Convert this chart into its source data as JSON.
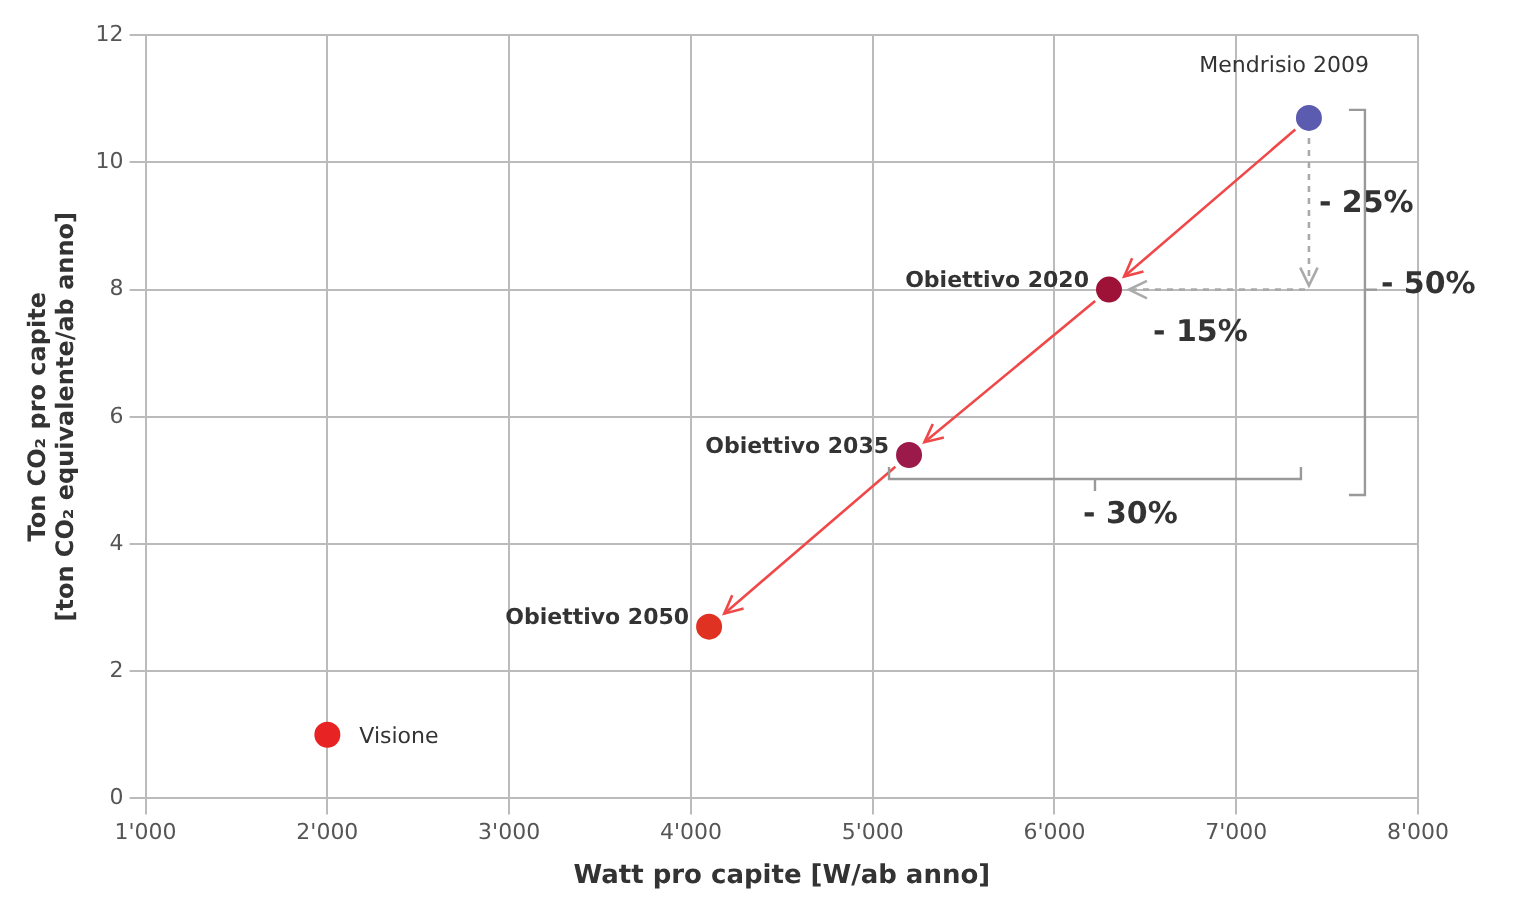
{
  "chart_data": {
    "type": "scatter",
    "xlabel": "Watt pro capite [W/ab anno]",
    "ylabel": "Ton CO₂ pro capite\n[ton CO₂ equivalente/ab anno]",
    "xlim": [
      1000,
      8000
    ],
    "xticks": [
      {
        "value": 1000,
        "label": "1'000"
      },
      {
        "value": 2000,
        "label": "2'000"
      },
      {
        "value": 3000,
        "label": "3'000"
      },
      {
        "value": 4000,
        "label": "4'000"
      },
      {
        "value": 5000,
        "label": "5'000"
      },
      {
        "value": 6000,
        "label": "6'000"
      },
      {
        "value": 7000,
        "label": "7'000"
      },
      {
        "value": 8000,
        "label": "8'000"
      }
    ],
    "ylim": [
      0,
      12
    ],
    "yticks": [
      0,
      2,
      4,
      6,
      8,
      10,
      12
    ],
    "grid": true,
    "marker": "circle",
    "series": [
      {
        "name": "Mendrisio 2009",
        "color": "#5b5bb0",
        "x": [
          7400
        ],
        "values": [
          10.7
        ]
      },
      {
        "name": "Obiettivo 2020",
        "color": "#9e1238",
        "x": [
          6300
        ],
        "values": [
          8.0
        ]
      },
      {
        "name": "Obiettivo 2035",
        "color": "#9c1a4a",
        "x": [
          5200
        ],
        "values": [
          5.4
        ]
      },
      {
        "name": "Obiettivo 2050",
        "color": "#e03222",
        "x": [
          4100
        ],
        "values": [
          2.7
        ]
      },
      {
        "name": "Visione",
        "color": "#e82323",
        "x": [
          2000
        ],
        "values": [
          1.0
        ]
      }
    ],
    "annotations": [
      "- 25%",
      "- 15%",
      "- 50%",
      "- 30%"
    ]
  }
}
